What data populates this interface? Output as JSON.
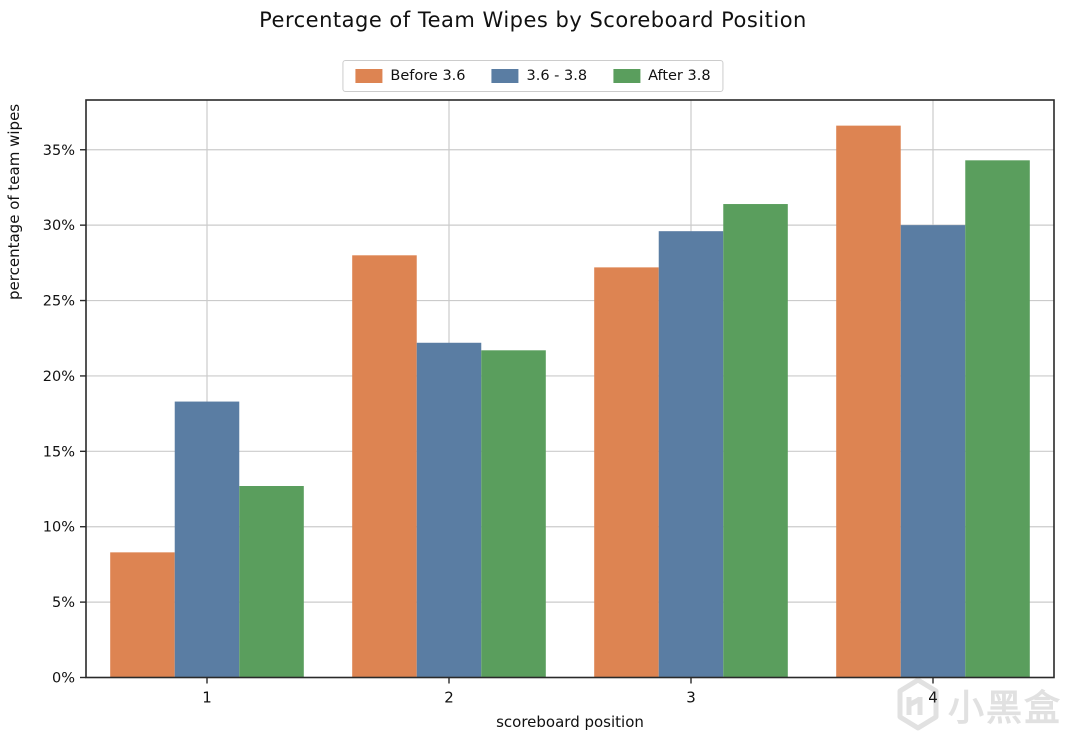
{
  "title": "Percentage of Team Wipes by Scoreboard Position",
  "watermark": {
    "brand_text": "小黑盒"
  },
  "chart_data": {
    "type": "bar",
    "title": "Percentage of Team Wipes by Scoreboard Position",
    "xlabel": "scoreboard position",
    "ylabel": "percentage of team wipes",
    "categories": [
      "1",
      "2",
      "3",
      "4"
    ],
    "series": [
      {
        "name": "Before 3.6",
        "color": "#dd8452",
        "values": [
          8.3,
          28.0,
          27.2,
          36.6
        ]
      },
      {
        "name": "3.6 - 3.8",
        "color": "#5a7da3",
        "values": [
          18.3,
          22.2,
          29.6,
          30.0
        ]
      },
      {
        "name": "After 3.8",
        "color": "#5a9e5d",
        "values": [
          12.7,
          21.7,
          31.4,
          34.3
        ]
      }
    ],
    "yticks": [
      0,
      5,
      10,
      15,
      20,
      25,
      30,
      35
    ],
    "ytick_labels": [
      "0%",
      "5%",
      "10%",
      "15%",
      "20%",
      "25%",
      "30%",
      "35%"
    ],
    "ylim": [
      0,
      38.3
    ],
    "grid": true,
    "legend_position": "upper center (outside axes)",
    "bar_group_fraction": 0.8
  }
}
